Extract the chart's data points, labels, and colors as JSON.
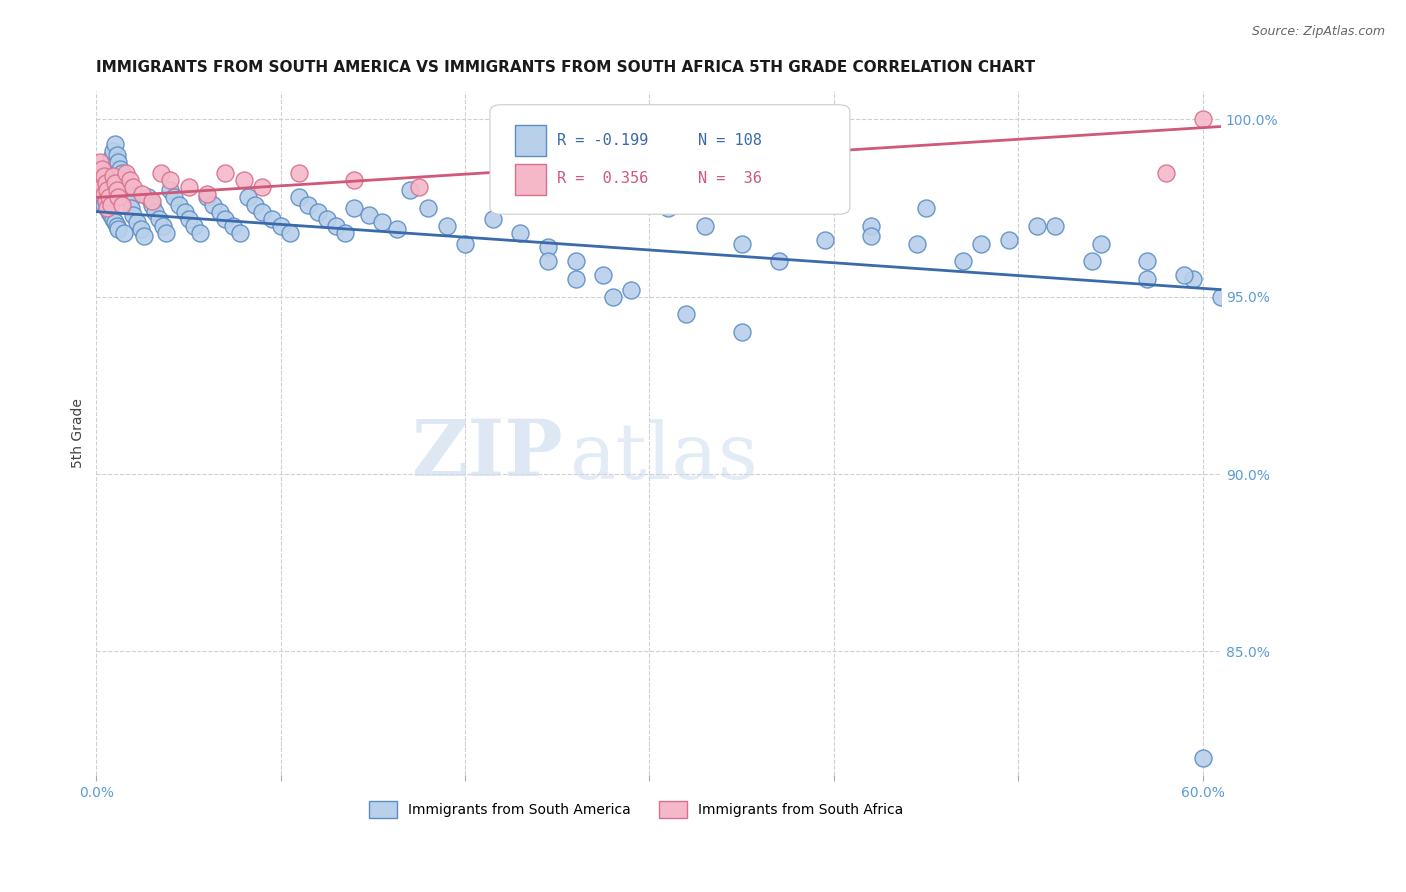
{
  "title": "IMMIGRANTS FROM SOUTH AMERICA VS IMMIGRANTS FROM SOUTH AFRICA 5TH GRADE CORRELATION CHART",
  "source": "Source: ZipAtlas.com",
  "ylabel": "5th Grade",
  "xlim": [
    0.0,
    0.61
  ],
  "ylim": [
    0.815,
    1.008
  ],
  "xtick_positions": [
    0.0,
    0.1,
    0.2,
    0.3,
    0.4,
    0.5,
    0.6
  ],
  "xticklabels": [
    "0.0%",
    "",
    "",
    "",
    "",
    "",
    "60.0%"
  ],
  "yticks_right": [
    1.0,
    0.95,
    0.9,
    0.85
  ],
  "ytick_right_labels": [
    "100.0%",
    "95.0%",
    "90.0%",
    "85.0%"
  ],
  "blue_color": "#b8d0ea",
  "blue_edge_color": "#5b8ec4",
  "blue_line_color": "#3a6aaa",
  "pink_color": "#f5b8c8",
  "pink_edge_color": "#d87090",
  "pink_line_color": "#d05878",
  "legend_blue_label": "Immigrants from South America",
  "legend_pink_label": "Immigrants from South Africa",
  "r_blue": -0.199,
  "n_blue": 108,
  "r_pink": 0.356,
  "n_pink": 36,
  "blue_scatter_x": [
    0.001,
    0.002,
    0.002,
    0.003,
    0.003,
    0.004,
    0.004,
    0.005,
    0.005,
    0.006,
    0.006,
    0.007,
    0.007,
    0.008,
    0.008,
    0.009,
    0.009,
    0.01,
    0.01,
    0.011,
    0.011,
    0.012,
    0.012,
    0.013,
    0.014,
    0.015,
    0.015,
    0.016,
    0.017,
    0.018,
    0.019,
    0.02,
    0.022,
    0.024,
    0.026,
    0.028,
    0.03,
    0.032,
    0.034,
    0.036,
    0.038,
    0.04,
    0.042,
    0.045,
    0.048,
    0.05,
    0.053,
    0.056,
    0.06,
    0.063,
    0.067,
    0.07,
    0.074,
    0.078,
    0.082,
    0.086,
    0.09,
    0.095,
    0.1,
    0.105,
    0.11,
    0.115,
    0.12,
    0.125,
    0.13,
    0.135,
    0.14,
    0.148,
    0.155,
    0.163,
    0.17,
    0.18,
    0.19,
    0.2,
    0.215,
    0.23,
    0.245,
    0.26,
    0.275,
    0.29,
    0.31,
    0.33,
    0.35,
    0.37,
    0.395,
    0.42,
    0.445,
    0.47,
    0.495,
    0.52,
    0.545,
    0.57,
    0.595,
    0.245,
    0.26,
    0.28,
    0.32,
    0.35,
    0.38,
    0.42,
    0.45,
    0.48,
    0.51,
    0.54,
    0.57,
    0.6,
    0.61,
    0.59
  ],
  "blue_scatter_y": [
    0.98,
    0.982,
    0.978,
    0.984,
    0.979,
    0.981,
    0.976,
    0.983,
    0.977,
    0.985,
    0.975,
    0.987,
    0.974,
    0.989,
    0.973,
    0.991,
    0.972,
    0.993,
    0.971,
    0.99,
    0.97,
    0.988,
    0.969,
    0.986,
    0.985,
    0.983,
    0.968,
    0.981,
    0.979,
    0.977,
    0.975,
    0.973,
    0.971,
    0.969,
    0.967,
    0.978,
    0.976,
    0.974,
    0.972,
    0.97,
    0.968,
    0.98,
    0.978,
    0.976,
    0.974,
    0.972,
    0.97,
    0.968,
    0.978,
    0.976,
    0.974,
    0.972,
    0.97,
    0.968,
    0.978,
    0.976,
    0.974,
    0.972,
    0.97,
    0.968,
    0.978,
    0.976,
    0.974,
    0.972,
    0.97,
    0.968,
    0.975,
    0.973,
    0.971,
    0.969,
    0.98,
    0.975,
    0.97,
    0.965,
    0.972,
    0.968,
    0.964,
    0.96,
    0.956,
    0.952,
    0.975,
    0.97,
    0.965,
    0.96,
    0.966,
    0.97,
    0.965,
    0.96,
    0.966,
    0.97,
    0.965,
    0.96,
    0.955,
    0.96,
    0.955,
    0.95,
    0.945,
    0.94,
    0.98,
    0.967,
    0.975,
    0.965,
    0.97,
    0.96,
    0.955,
    0.82,
    0.95,
    0.956
  ],
  "pink_scatter_x": [
    0.001,
    0.002,
    0.002,
    0.003,
    0.003,
    0.004,
    0.004,
    0.005,
    0.005,
    0.006,
    0.006,
    0.007,
    0.008,
    0.009,
    0.01,
    0.011,
    0.012,
    0.014,
    0.016,
    0.018,
    0.02,
    0.025,
    0.03,
    0.035,
    0.04,
    0.05,
    0.06,
    0.07,
    0.08,
    0.09,
    0.11,
    0.14,
    0.175,
    0.3,
    0.58,
    0.6
  ],
  "pink_scatter_y": [
    0.985,
    0.983,
    0.988,
    0.981,
    0.986,
    0.979,
    0.984,
    0.977,
    0.982,
    0.975,
    0.98,
    0.978,
    0.976,
    0.984,
    0.982,
    0.98,
    0.978,
    0.976,
    0.985,
    0.983,
    0.981,
    0.979,
    0.977,
    0.985,
    0.983,
    0.981,
    0.979,
    0.985,
    0.983,
    0.981,
    0.985,
    0.983,
    0.981,
    0.99,
    0.985,
    1.0
  ],
  "blue_trend_x": [
    0.0,
    0.61
  ],
  "blue_trend_y": [
    0.974,
    0.952
  ],
  "pink_trend_x": [
    0.0,
    0.61
  ],
  "pink_trend_y": [
    0.978,
    0.998
  ],
  "watermark_zip": "ZIP",
  "watermark_atlas": "atlas",
  "background_color": "#ffffff",
  "grid_color": "#d0d0d0",
  "axis_label_color": "#5b9bd5",
  "title_fontsize": 11,
  "label_fontsize": 10,
  "source_fontsize": 9
}
